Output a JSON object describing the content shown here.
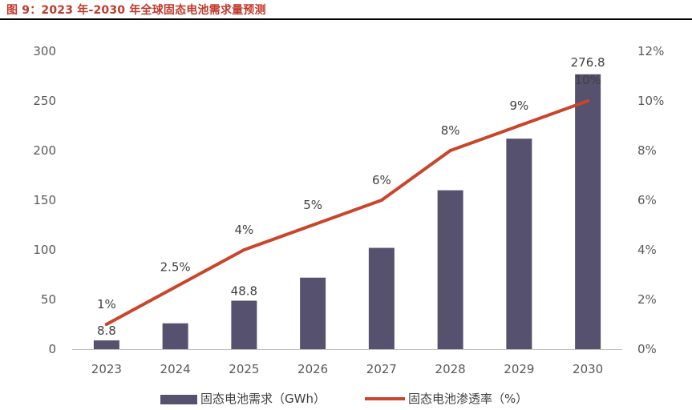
{
  "title": "图 9：2023 年-2030 年全球固态电池需求量预测",
  "chart_data": {
    "type": "bar+line",
    "categories": [
      "2023",
      "2024",
      "2025",
      "2026",
      "2027",
      "2028",
      "2029",
      "2030"
    ],
    "series": [
      {
        "name": "固态电池需求（GWh）",
        "type": "bar",
        "axis": "left",
        "color": "#56516f",
        "values": [
          8.8,
          26,
          48.8,
          72,
          102,
          160,
          212,
          276.8
        ],
        "data_labels": [
          "8.8",
          "",
          "48.8",
          "",
          "",
          "",
          "",
          "276.8"
        ]
      },
      {
        "name": "固态电池渗透率（%）",
        "type": "line",
        "axis": "right",
        "color": "#c9452b",
        "values": [
          1,
          2.5,
          4,
          5,
          6,
          8,
          9,
          10
        ],
        "data_labels": [
          "1%",
          "2.5%",
          "4%",
          "5%",
          "6%",
          "8%",
          "9%",
          "10%"
        ]
      }
    ],
    "y_left": {
      "range": [
        0,
        300
      ],
      "ticks": [
        0,
        50,
        100,
        150,
        200,
        250,
        300
      ],
      "tick_labels": [
        "0",
        "50",
        "100",
        "150",
        "200",
        "250",
        "300"
      ]
    },
    "y_right": {
      "range": [
        0,
        12
      ],
      "ticks": [
        0,
        2,
        4,
        6,
        8,
        10,
        12
      ],
      "tick_labels": [
        "0%",
        "2%",
        "4%",
        "6%",
        "8%",
        "10%",
        "12%"
      ]
    },
    "grid": false,
    "legend_position": "bottom"
  }
}
